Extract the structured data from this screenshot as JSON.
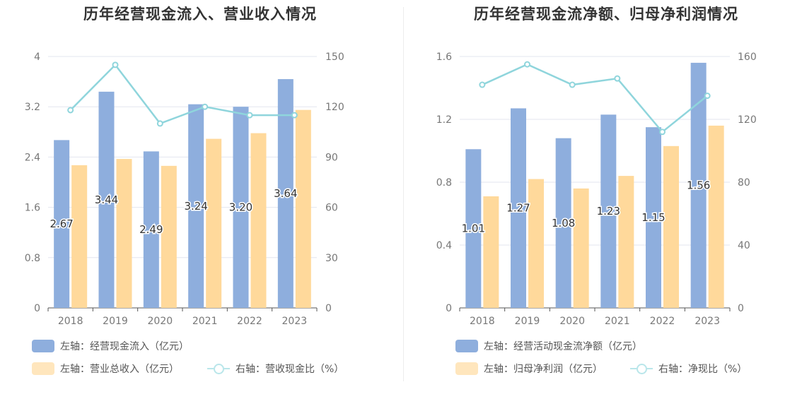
{
  "chart_data": [
    {
      "type": "bar",
      "title": "历年经营现金流入、营业收入情况",
      "categories": [
        "2018",
        "2019",
        "2020",
        "2021",
        "2022",
        "2023"
      ],
      "left_axis": {
        "ticks": [
          "0",
          "0.8",
          "1.6",
          "2.4",
          "3.2",
          "4"
        ],
        "ylim": [
          0,
          4
        ]
      },
      "right_axis": {
        "ticks": [
          "0",
          "30",
          "60",
          "90",
          "120",
          "150"
        ],
        "ylim": [
          0,
          150
        ]
      },
      "series": [
        {
          "name": "左轴：经营现金流入（亿元）",
          "axis": "left",
          "kind": "bar",
          "color": "#8eaedd",
          "values": [
            2.67,
            3.44,
            2.49,
            3.24,
            3.2,
            3.64
          ],
          "show_labels": true,
          "labels": [
            "2.67",
            "3.44",
            "2.49",
            "3.24",
            "3.20",
            "3.64"
          ]
        },
        {
          "name": "左轴：营业总收入（亿元）",
          "axis": "left",
          "kind": "bar",
          "color": "#ffd99b",
          "values": [
            2.27,
            2.37,
            2.26,
            2.69,
            2.78,
            3.15
          ],
          "show_labels": false
        },
        {
          "name": "右轴：营收现金比（%）",
          "axis": "right",
          "kind": "line",
          "color": "#8fd5dc",
          "values": [
            118,
            145,
            110,
            120,
            115,
            115
          ],
          "show_labels": false
        }
      ],
      "legend_position": "bottom",
      "grid": true
    },
    {
      "type": "bar",
      "title": "历年经营现金流净额、归母净利润情况",
      "categories": [
        "2018",
        "2019",
        "2020",
        "2021",
        "2022",
        "2023"
      ],
      "left_axis": {
        "ticks": [
          "0",
          "0.4",
          "0.8",
          "1.2",
          "1.6"
        ],
        "ylim": [
          0,
          1.6
        ]
      },
      "right_axis": {
        "ticks": [
          "0",
          "40",
          "80",
          "120",
          "160"
        ],
        "ylim": [
          0,
          160
        ]
      },
      "series": [
        {
          "name": "左轴：经营活动现金流净额（亿元）",
          "axis": "left",
          "kind": "bar",
          "color": "#8eaedd",
          "values": [
            1.01,
            1.27,
            1.08,
            1.23,
            1.15,
            1.56
          ],
          "show_labels": true,
          "labels": [
            "1.01",
            "1.27",
            "1.08",
            "1.23",
            "1.15",
            "1.56"
          ]
        },
        {
          "name": "左轴：归母净利润（亿元）",
          "axis": "left",
          "kind": "bar",
          "color": "#ffd99b",
          "values": [
            0.71,
            0.82,
            0.76,
            0.84,
            1.03,
            1.16
          ],
          "show_labels": false
        },
        {
          "name": "右轴：净现比（%）",
          "axis": "right",
          "kind": "line",
          "color": "#8fd5dc",
          "values": [
            142,
            155,
            142,
            146,
            112,
            135
          ],
          "show_labels": false
        }
      ],
      "legend_position": "bottom",
      "grid": true
    }
  ]
}
